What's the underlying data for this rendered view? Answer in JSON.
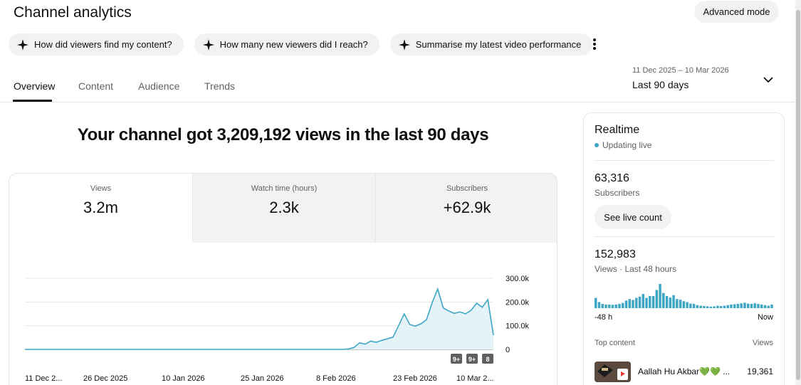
{
  "header": {
    "title": "Channel analytics",
    "advanced_mode": "Advanced mode"
  },
  "chips": [
    {
      "label": "How did viewers find my content?",
      "icon": "sparkle-icon"
    },
    {
      "label": "How many new viewers did I reach?",
      "icon": "sparkle-icon"
    },
    {
      "label": "Summarise my latest video performance",
      "icon": "sparkle-icon"
    }
  ],
  "tabs": [
    {
      "label": "Overview",
      "active": true
    },
    {
      "label": "Content",
      "active": false
    },
    {
      "label": "Audience",
      "active": false
    },
    {
      "label": "Trends",
      "active": false
    }
  ],
  "date_range": {
    "dates": "11 Dec 2025 – 10 Mar 2026",
    "label": "Last 90 days"
  },
  "headline": "Your channel got 3,209,192 views in the last 90 days",
  "metrics": [
    {
      "label": "Views",
      "value": "3.2m",
      "active": true
    },
    {
      "label": "Watch time (hours)",
      "value": "2.3k",
      "active": false
    },
    {
      "label": "Subscribers",
      "value": "+62.9k",
      "active": false
    }
  ],
  "chart_data": {
    "type": "area",
    "series": [
      {
        "name": "Views",
        "color": "#3ea6c5"
      }
    ],
    "y_ticks": [
      "300.0k",
      "200.0k",
      "100.0k",
      "0"
    ],
    "ylim": [
      0,
      300000
    ],
    "x_tick_labels": [
      "11 Dec 2...",
      "26 Dec 2025",
      "10 Jan 2026",
      "25 Jan 2026",
      "8 Feb 2026",
      "23 Feb 2026",
      "10 Mar 2..."
    ],
    "values": [
      0,
      0,
      0,
      0,
      0,
      0,
      0,
      0,
      0,
      0,
      0,
      0,
      0,
      0,
      0,
      0,
      0,
      0,
      0,
      0,
      0,
      0,
      0,
      0,
      0,
      0,
      0,
      0,
      0,
      0,
      0,
      0,
      0,
      0,
      0,
      0,
      0,
      0,
      0,
      0,
      0,
      0,
      0,
      0,
      0,
      0,
      0,
      0,
      0,
      0,
      0,
      0,
      0,
      0,
      0,
      0,
      0,
      0,
      2000,
      8000,
      28000,
      22000,
      35000,
      30000,
      38000,
      45000,
      52000,
      100000,
      150000,
      105000,
      98000,
      108000,
      125000,
      195000,
      255000,
      175000,
      162000,
      152000,
      158000,
      150000,
      165000,
      195000,
      178000,
      210000,
      60000
    ],
    "markers": [
      "9+",
      "9+",
      "8"
    ]
  },
  "realtime": {
    "title": "Realtime",
    "status": "Updating live",
    "subscribers_value": "63,316",
    "subscribers_label": "Subscribers",
    "live_button": "See live count",
    "views_value": "152,983",
    "views_label": "Views · Last 48 hours",
    "axis_start": "-48 h",
    "axis_end": "Now",
    "bars": [
      34,
      20,
      14,
      12,
      12,
      11,
      12,
      14,
      17,
      25,
      30,
      27,
      34,
      38,
      47,
      34,
      40,
      40,
      60,
      80,
      50,
      40,
      35,
      43,
      30,
      28,
      23,
      20,
      15,
      14,
      10,
      8,
      7,
      6,
      5,
      6,
      8,
      7,
      8,
      10,
      12,
      13,
      14,
      16,
      18,
      15,
      14,
      16,
      14,
      12,
      10,
      8,
      12
    ],
    "top_content_label": "Top content",
    "views_col_label": "Views",
    "top_item_title": "Aallah Hu Akbar💚💚 ...",
    "top_item_views": "19,361"
  }
}
